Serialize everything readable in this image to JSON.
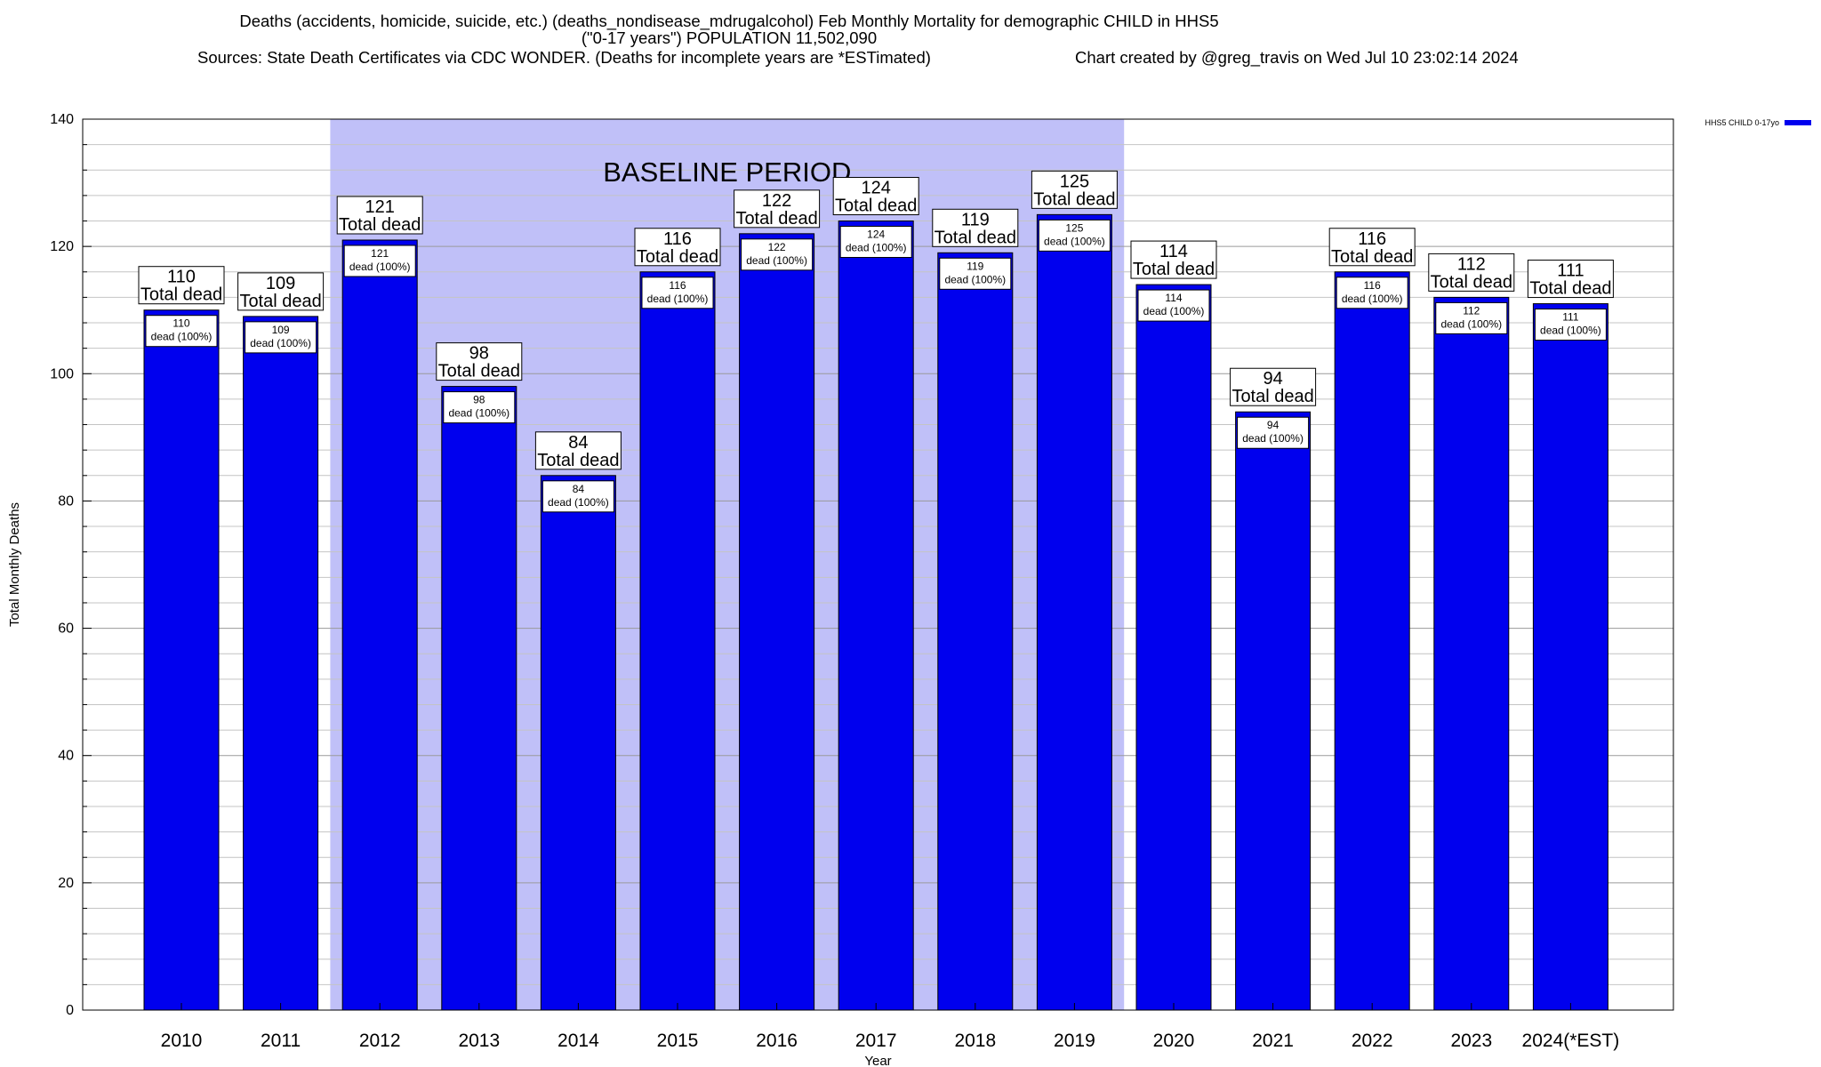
{
  "chart_data": {
    "type": "bar",
    "title_lines": [
      "Deaths (accidents, homicide, suicide, etc.) (deaths_nondisease_mdrugalcohol) Feb Monthly Mortality for demographic CHILD in HHS5",
      "(\"0-17 years\") POPULATION 11,502,090"
    ],
    "sources": "Sources: State Death Certificates via CDC WONDER. (Deaths for incomplete years are *ESTimated)",
    "credit": "Chart created by @greg_travis on Wed Jul 10 23:02:14 2024",
    "xlabel": "Year",
    "ylabel": "Total Monthly Deaths",
    "ylim": [
      0,
      140
    ],
    "y_ticks": [
      0,
      20,
      40,
      60,
      80,
      100,
      120,
      140
    ],
    "grid": true,
    "legend": {
      "position": "top-right",
      "label": "HHS5 CHILD 0-17yo",
      "color": "#0000ee"
    },
    "baseline": {
      "label": "BASELINE PERIOD",
      "start": "2012",
      "end": "2019",
      "color": "#c0c0f8"
    },
    "categories": [
      "2010",
      "2011",
      "2012",
      "2013",
      "2014",
      "2015",
      "2016",
      "2017",
      "2018",
      "2019",
      "2020",
      "2021",
      "2022",
      "2023",
      "2024(*EST)"
    ],
    "series": [
      {
        "name": "HHS5 CHILD 0-17yo",
        "color": "#0000ee",
        "values": [
          110,
          109,
          121,
          98,
          84,
          116,
          122,
          124,
          119,
          125,
          114,
          94,
          116,
          112,
          111
        ]
      }
    ],
    "total_label": "Total dead",
    "inner_label": "dead (100%)"
  }
}
